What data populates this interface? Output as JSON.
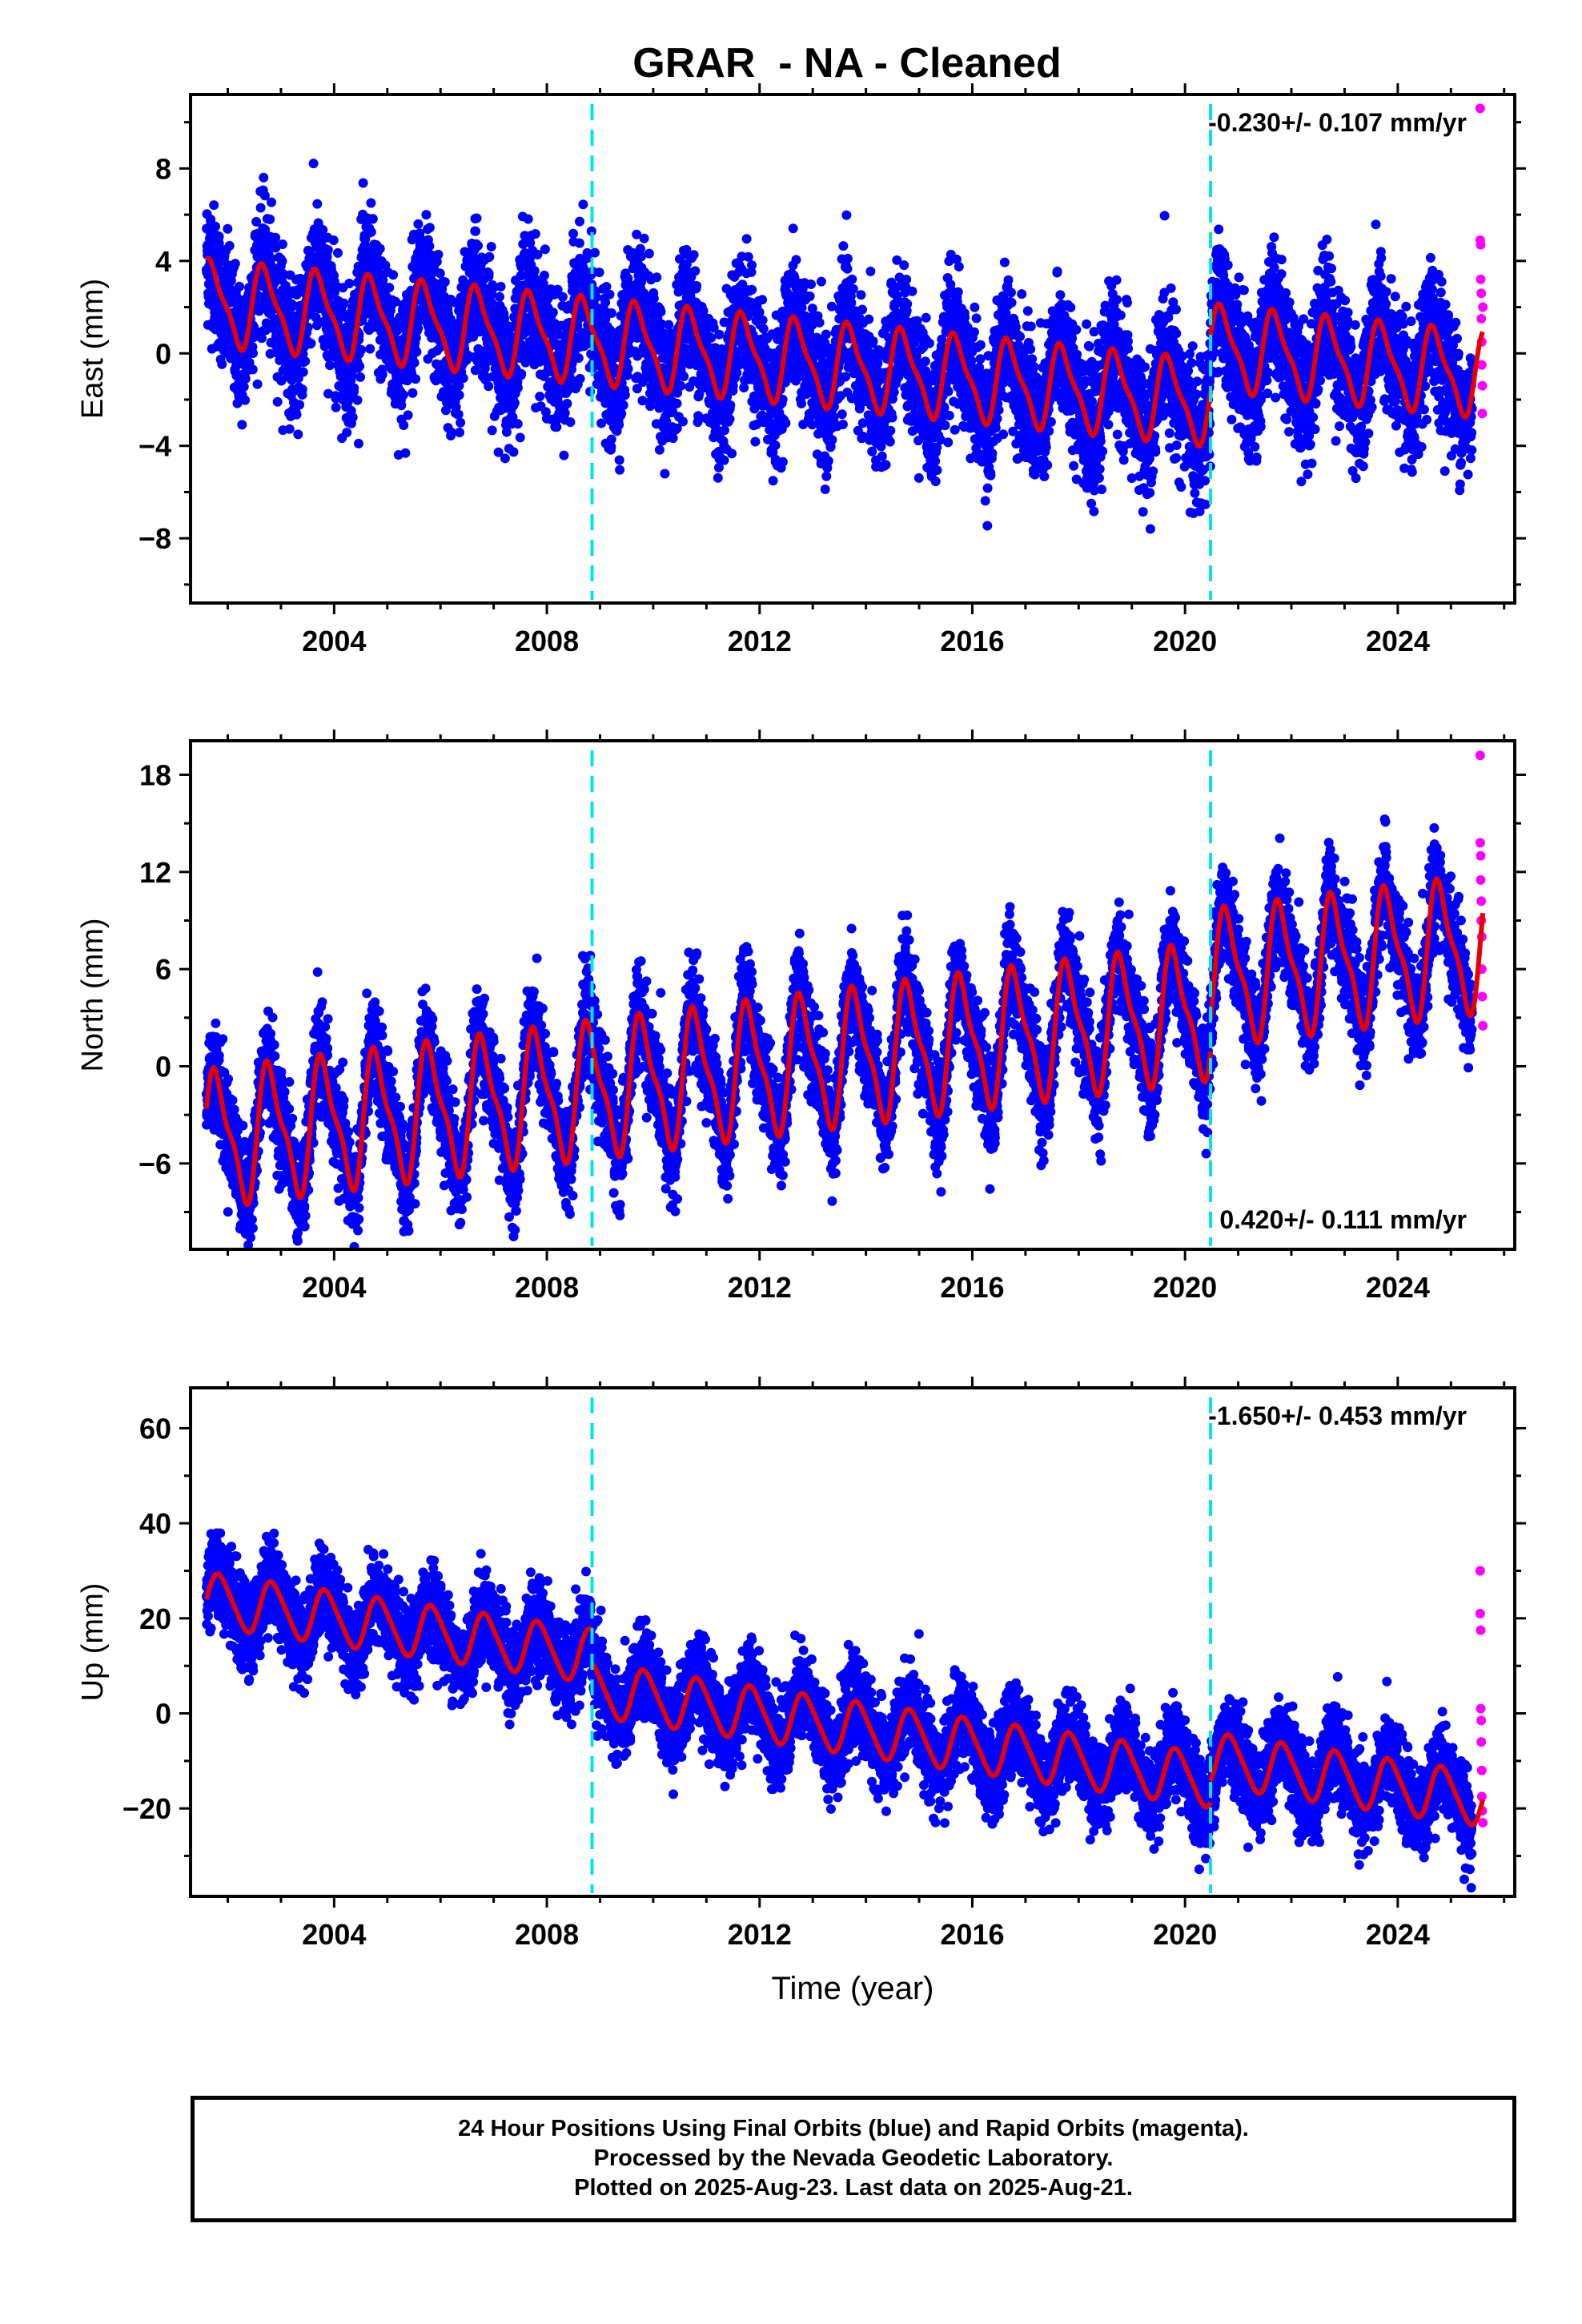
{
  "title": "GRAR  - NA - Cleaned",
  "colors": {
    "final_orbits": "#0000ff",
    "rapid_orbits": "#ff00ff",
    "model_fit": "#e80000",
    "equipment_change": "#00e5e5",
    "axes": "#000000"
  },
  "footer": {
    "line1": "24 Hour Positions Using Final Orbits (blue) and Rapid Orbits (magenta).",
    "line2": "Processed by the Nevada Geodetic Laboratory.",
    "line3": "Plotted on 2025-Aug-23. Last data on 2025-Aug-21."
  },
  "chart_data": [
    {
      "type": "scatter",
      "component": "East",
      "ylabel": "East (mm)",
      "xlabel": "",
      "xlim": [
        2001.3,
        2026.2
      ],
      "ylim": [
        -10.8,
        11.2
      ],
      "xticks": [
        2004,
        2008,
        2012,
        2016,
        2020,
        2024
      ],
      "yticks": [
        -8,
        -4,
        0,
        4,
        8
      ],
      "rate_label": "-0.230+/- 0.107 mm/yr",
      "rate_label_position": "top-right",
      "vertical_lines": [
        2008.85,
        2020.48
      ],
      "model": {
        "segments": [
          {
            "start": 2001.6,
            "end": 2020.48,
            "offset": 2.2,
            "rate": -0.23
          },
          {
            "start": 2020.48,
            "end": 2025.6,
            "offset": 4.6,
            "rate": -0.23
          }
        ],
        "annual_amplitude": 1.7,
        "semiannual_amplitude": 0.5,
        "phase_year": 0.45
      },
      "final_orbits": {
        "start": 2001.6,
        "end": 2025.4,
        "scatter": 1.4
      },
      "series": [
        {
          "name": "Rapid Orbits",
          "x": [
            2025.55,
            2025.55,
            2025.56,
            2025.56,
            2025.57,
            2025.57,
            2025.58,
            2025.58,
            2025.59,
            2025.59,
            2025.6
          ],
          "values": [
            10.6,
            4.9,
            4.7,
            3.2,
            2.6,
            1.5,
            0.5,
            -0.5,
            -1.4,
            -2.6,
            2.0
          ]
        }
      ]
    },
    {
      "type": "scatter",
      "component": "North",
      "ylabel": "North (mm)",
      "xlabel": "",
      "xlim": [
        2001.3,
        2026.2
      ],
      "ylim": [
        -11.3,
        20.1
      ],
      "xticks": [
        2004,
        2008,
        2012,
        2016,
        2020,
        2024
      ],
      "yticks": [
        -6,
        0,
        6,
        12,
        18
      ],
      "rate_label": "0.420+/- 0.111 mm/yr",
      "rate_label_position": "bottom-right",
      "vertical_lines": [
        2008.85,
        2020.48
      ],
      "model": {
        "segments": [
          {
            "start": 2001.6,
            "end": 2020.48,
            "offset": -4.5,
            "rate": 0.42
          },
          {
            "start": 2020.48,
            "end": 2025.6,
            "offset": -2.5,
            "rate": 0.42
          }
        ],
        "annual_amplitude": 3.8,
        "semiannual_amplitude": 1.2,
        "phase_year": 0.55
      },
      "final_orbits": {
        "start": 2001.6,
        "end": 2025.4,
        "scatter": 1.5
      },
      "series": [
        {
          "name": "Rapid Orbits",
          "x": [
            2025.55,
            2025.55,
            2025.56,
            2025.56,
            2025.57,
            2025.57,
            2025.58,
            2025.58,
            2025.59,
            2025.6
          ],
          "values": [
            19.2,
            13.8,
            13.0,
            11.5,
            10.2,
            9.0,
            8.0,
            6.0,
            4.3,
            2.5
          ]
        }
      ]
    },
    {
      "type": "scatter",
      "component": "Up",
      "ylabel": "Up (mm)",
      "xlabel": "Time (year)",
      "xlim": [
        2001.3,
        2026.2
      ],
      "ylim": [
        -38.5,
        68.5
      ],
      "xticks": [
        2004,
        2008,
        2012,
        2016,
        2020,
        2024
      ],
      "yticks": [
        -20,
        0,
        20,
        40,
        60
      ],
      "rate_label": "-1.650+/- 0.453 mm/yr",
      "rate_label_position": "top-right",
      "vertical_lines": [
        2008.85,
        2020.48
      ],
      "model": {
        "segments": [
          {
            "start": 2001.6,
            "end": 2008.85,
            "offset": 24.0,
            "rate": -1.65
          },
          {
            "start": 2008.85,
            "end": 2020.48,
            "offset": 17.0,
            "rate": -1.65
          },
          {
            "start": 2020.48,
            "end": 2025.6,
            "offset": 21.5,
            "rate": -1.65
          }
        ],
        "annual_amplitude": 5.5,
        "semiannual_amplitude": 0.8,
        "phase_year": 0.6
      },
      "final_orbits": {
        "start": 2001.6,
        "end": 2025.4,
        "scatter": 4.5
      },
      "series": [
        {
          "name": "Rapid Orbits",
          "x": [
            2025.55,
            2025.55,
            2025.56,
            2025.56,
            2025.57,
            2025.57,
            2025.58,
            2025.58,
            2025.59,
            2025.6
          ],
          "values": [
            30.0,
            21.0,
            17.5,
            1.0,
            -1.5,
            -6.0,
            -12.0,
            -17.5,
            -20.5,
            -23.0
          ]
        }
      ]
    }
  ]
}
